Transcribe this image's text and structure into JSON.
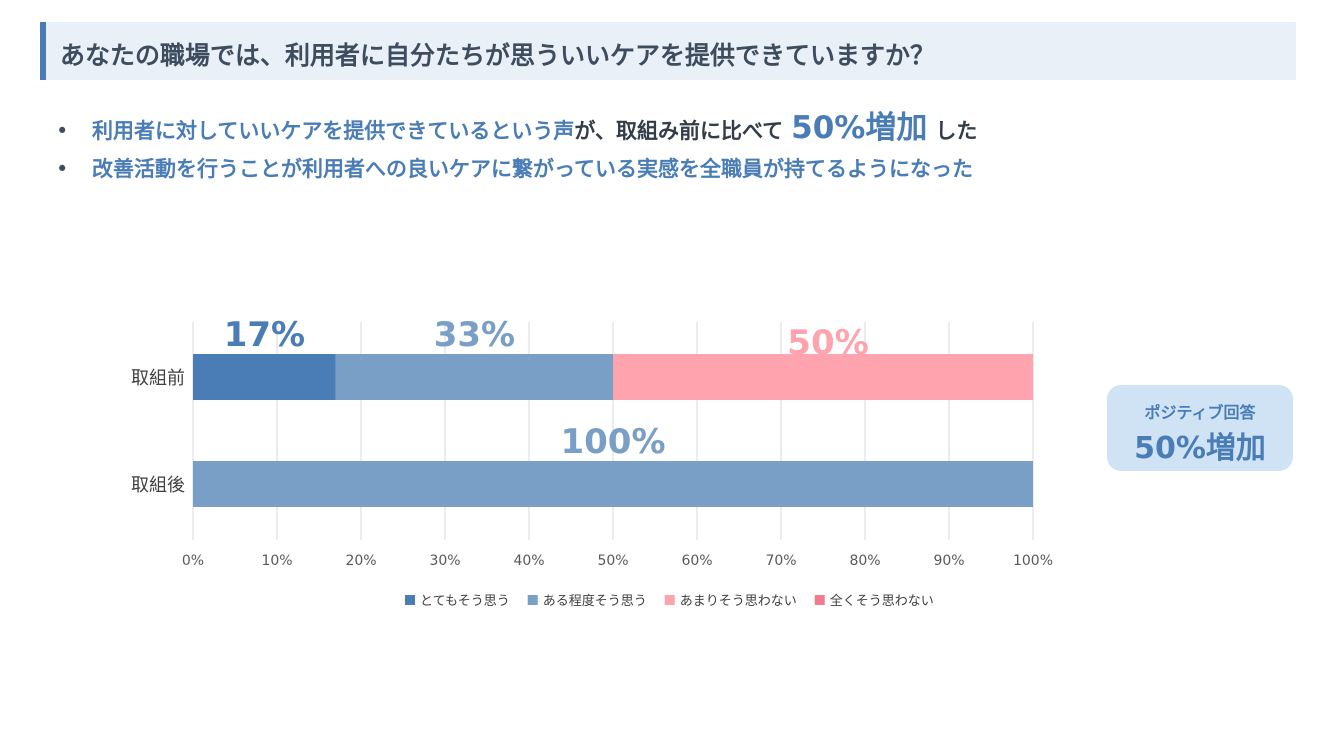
{
  "title": "あなたの職場では、利用者に自分たちが思ういいケアを提供できていますか？",
  "bullets": [
    {
      "part1": "利用者に対していいケアを提供できているという声",
      "part2": "が、取組み前に比べて",
      "emphasis": "50%増加",
      "part3": "した"
    },
    {
      "text": "改善活動を行うことが利用者への良いケアに繋がっている実感を全職員が持てるようになった"
    }
  ],
  "callout": {
    "subtitle": "ポジティブ回答",
    "headline": "50%増加"
  },
  "chart_data": {
    "type": "bar",
    "orientation": "horizontal",
    "stacked": true,
    "categories": [
      "取組前",
      "取組後"
    ],
    "series": [
      {
        "name": "とてもそう思う",
        "values": [
          17,
          0
        ],
        "color": "#4a7db5",
        "label_color": "#4a7db5"
      },
      {
        "name": "ある程度そう思う",
        "values": [
          33,
          100
        ],
        "color": "#7a9fc6",
        "label_color": "#7a9fc6"
      },
      {
        "name": "あまりそう思わない",
        "values": [
          50,
          0
        ],
        "color": "#ffa4ae",
        "label_color": "#ffa4ae"
      },
      {
        "name": "全くそう思わない",
        "values": [
          0,
          0
        ],
        "color": "#f47a8d",
        "label_color": "#f47a8d"
      }
    ],
    "data_labels": [
      {
        "category": "取組前",
        "series": "とてもそう思う",
        "text": "17%"
      },
      {
        "category": "取組前",
        "series": "ある程度そう思う",
        "text": "33%"
      },
      {
        "category": "取組前",
        "series": "あまりそう思わない",
        "text": "50%"
      },
      {
        "category": "取組後",
        "series": "ある程度そう思う",
        "text": "100%"
      }
    ],
    "xlim": [
      0,
      100
    ],
    "xticks": [
      0,
      10,
      20,
      30,
      40,
      50,
      60,
      70,
      80,
      90,
      100
    ],
    "xtick_labels": [
      "0%",
      "10%",
      "20%",
      "30%",
      "40%",
      "50%",
      "60%",
      "70%",
      "80%",
      "90%",
      "100%"
    ],
    "grid": true,
    "legend_position": "bottom",
    "grid_color": "#d9d9d9"
  }
}
